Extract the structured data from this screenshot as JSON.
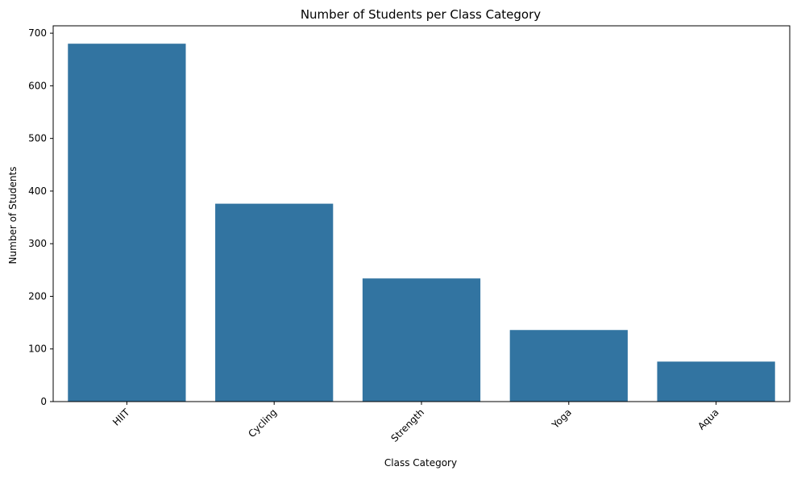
{
  "chart_data": {
    "type": "bar",
    "title": "Number of Students per Class Category",
    "xlabel": "Class Category",
    "ylabel": "Number of Students",
    "categories": [
      "HIIT",
      "Cycling",
      "Strength",
      "Yoga",
      "Aqua"
    ],
    "values": [
      680,
      376,
      234,
      136,
      76
    ],
    "ylim": [
      0,
      714
    ],
    "yticks": [
      0,
      100,
      200,
      300,
      400,
      500,
      600,
      700
    ],
    "ytick_labels": [
      "0",
      "100",
      "200",
      "300",
      "400",
      "500",
      "600",
      "700"
    ],
    "grid": false,
    "legend": "none",
    "bar_color": "#3274a1",
    "xtick_rotation": "45"
  }
}
